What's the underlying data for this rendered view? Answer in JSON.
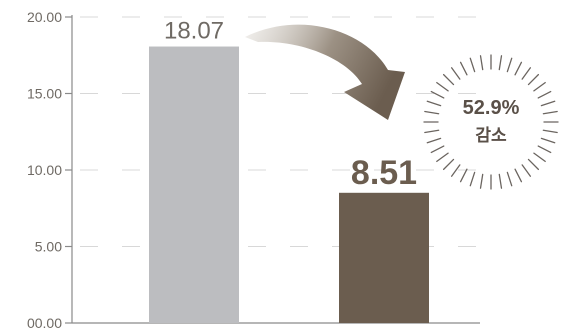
{
  "chart_data": {
    "type": "bar",
    "categories": [
      "",
      ""
    ],
    "values": [
      18.07,
      8.51
    ],
    "value_labels": [
      "18.07",
      "8.51"
    ],
    "ylim": [
      0,
      20
    ],
    "yticks": [
      0,
      5,
      10,
      15,
      20
    ],
    "ytick_labels": [
      "00.00",
      "5.00",
      "10.00",
      "15.00",
      "20.00"
    ],
    "grid": "horizontal dashed",
    "bar_colors": [
      "#bcbdc0",
      "#6b5d4f"
    ],
    "annotation": {
      "line1": "52.9%",
      "line2": "감소"
    }
  },
  "colors": {
    "axis": "#8a8a8a",
    "grid": "#d8d8d8",
    "tick_text": "#6f6a64",
    "value_light": "#6f6a64",
    "value_dark": "#6b5d4f",
    "arrow": "#7d7266",
    "badge_text": "#5a5048",
    "badge_rays": "#6b6560"
  }
}
